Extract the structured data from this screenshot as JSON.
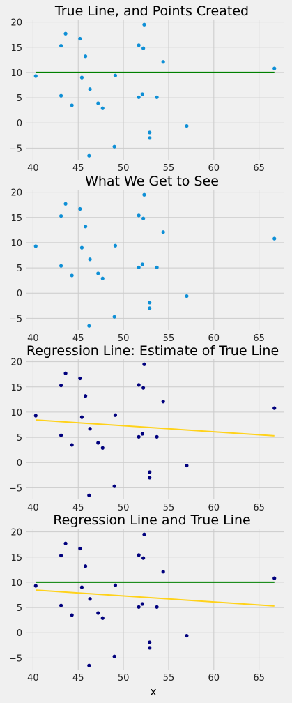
{
  "chart_data": [
    {
      "type": "scatter",
      "title": "True Line, and Points Created",
      "xlabel": "",
      "ylabel": "",
      "xlim": [
        39.2,
        67.8
      ],
      "ylim": [
        -7.3,
        20.5
      ],
      "xticks": [
        40,
        45,
        50,
        55,
        60,
        65
      ],
      "yticks": [
        -5,
        0,
        5,
        10,
        15,
        20
      ],
      "grid": true,
      "point_color": "#0e8fd6",
      "lines": [
        {
          "x": [
            40.3,
            66.7
          ],
          "y": [
            10,
            10
          ],
          "color": "#008000"
        }
      ]
    },
    {
      "type": "scatter",
      "title": "What We Get to See",
      "xlabel": "",
      "ylabel": "",
      "xlim": [
        39.2,
        67.8
      ],
      "ylim": [
        -7.3,
        20.5
      ],
      "xticks": [
        40,
        45,
        50,
        55,
        60,
        65
      ],
      "yticks": [
        -5,
        0,
        5,
        10,
        15,
        20
      ],
      "grid": true,
      "point_color": "#0e8fd6",
      "lines": []
    },
    {
      "type": "scatter",
      "title": "Regression Line: Estimate of True Line",
      "xlabel": "",
      "ylabel": "",
      "xlim": [
        39.2,
        67.8
      ],
      "ylim": [
        -7.3,
        20.5
      ],
      "xticks": [
        40,
        45,
        50,
        55,
        60,
        65
      ],
      "yticks": [
        -5,
        0,
        5,
        10,
        15,
        20
      ],
      "grid": true,
      "point_color": "#00007d",
      "lines": [
        {
          "x": [
            40.3,
            66.7
          ],
          "y": [
            8.45,
            5.3
          ],
          "color": "#ffd21a"
        }
      ]
    },
    {
      "type": "scatter",
      "title": "Regression Line and True Line",
      "xlabel": "x",
      "ylabel": "",
      "xlim": [
        39.2,
        67.8
      ],
      "ylim": [
        -7.3,
        20.5
      ],
      "xticks": [
        40,
        45,
        50,
        55,
        60,
        65
      ],
      "yticks": [
        -5,
        0,
        5,
        10,
        15,
        20
      ],
      "grid": true,
      "point_color": "#00007d",
      "lines": [
        {
          "x": [
            40.3,
            66.7
          ],
          "y": [
            10,
            10
          ],
          "color": "#008000"
        },
        {
          "x": [
            40.3,
            66.7
          ],
          "y": [
            8.45,
            5.3
          ],
          "color": "#ffd21a"
        }
      ]
    }
  ],
  "points": [
    {
      "x": 40.3,
      "y": 9.3
    },
    {
      "x": 43.1,
      "y": 15.3
    },
    {
      "x": 43.1,
      "y": 5.4
    },
    {
      "x": 43.6,
      "y": 17.7
    },
    {
      "x": 44.3,
      "y": 3.5
    },
    {
      "x": 45.2,
      "y": 16.7
    },
    {
      "x": 45.4,
      "y": 9.0
    },
    {
      "x": 45.8,
      "y": 13.2
    },
    {
      "x": 46.3,
      "y": 6.7
    },
    {
      "x": 46.2,
      "y": -6.5
    },
    {
      "x": 47.2,
      "y": 3.9
    },
    {
      "x": 47.7,
      "y": 2.9
    },
    {
      "x": 49.0,
      "y": -4.7
    },
    {
      "x": 49.1,
      "y": 9.4
    },
    {
      "x": 51.7,
      "y": 15.4
    },
    {
      "x": 51.7,
      "y": 5.1
    },
    {
      "x": 52.1,
      "y": 5.7
    },
    {
      "x": 52.2,
      "y": 14.8
    },
    {
      "x": 52.3,
      "y": 19.5
    },
    {
      "x": 52.9,
      "y": -1.9
    },
    {
      "x": 52.9,
      "y": -3.0
    },
    {
      "x": 53.7,
      "y": 5.1
    },
    {
      "x": 54.4,
      "y": 12.1
    },
    {
      "x": 57.0,
      "y": -0.6
    },
    {
      "x": 66.7,
      "y": 10.8
    }
  ]
}
